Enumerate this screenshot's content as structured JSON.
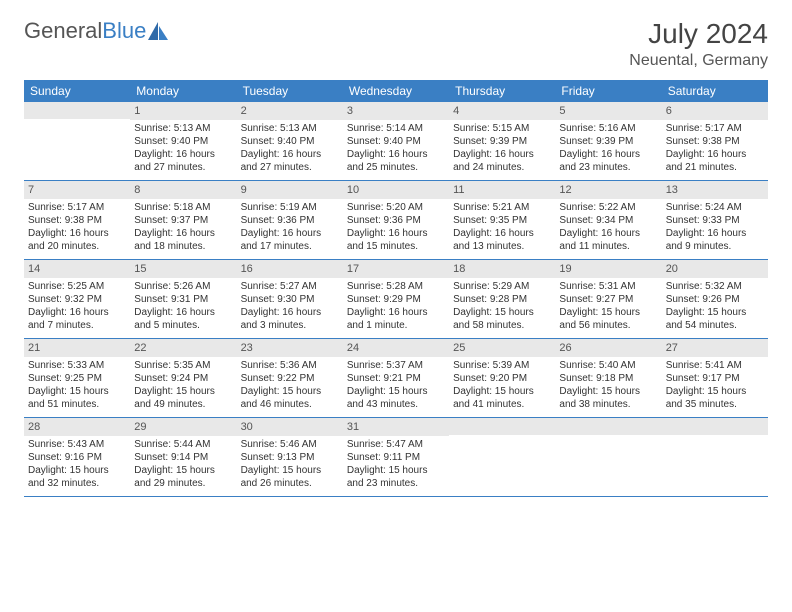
{
  "logo": {
    "word1": "General",
    "word2": "Blue"
  },
  "title": "July 2024",
  "location": "Neuental, Germany",
  "colors": {
    "header_bg": "#3a7fc4",
    "header_text": "#ffffff",
    "daynum_bg": "#e8e8e8",
    "row_border": "#3a7fc4",
    "body_text": "#333333"
  },
  "weekdays": [
    "Sunday",
    "Monday",
    "Tuesday",
    "Wednesday",
    "Thursday",
    "Friday",
    "Saturday"
  ],
  "weeks": [
    [
      {
        "day": "",
        "sunrise": "",
        "sunset": "",
        "daylight": ""
      },
      {
        "day": "1",
        "sunrise": "Sunrise: 5:13 AM",
        "sunset": "Sunset: 9:40 PM",
        "daylight": "Daylight: 16 hours and 27 minutes."
      },
      {
        "day": "2",
        "sunrise": "Sunrise: 5:13 AM",
        "sunset": "Sunset: 9:40 PM",
        "daylight": "Daylight: 16 hours and 27 minutes."
      },
      {
        "day": "3",
        "sunrise": "Sunrise: 5:14 AM",
        "sunset": "Sunset: 9:40 PM",
        "daylight": "Daylight: 16 hours and 25 minutes."
      },
      {
        "day": "4",
        "sunrise": "Sunrise: 5:15 AM",
        "sunset": "Sunset: 9:39 PM",
        "daylight": "Daylight: 16 hours and 24 minutes."
      },
      {
        "day": "5",
        "sunrise": "Sunrise: 5:16 AM",
        "sunset": "Sunset: 9:39 PM",
        "daylight": "Daylight: 16 hours and 23 minutes."
      },
      {
        "day": "6",
        "sunrise": "Sunrise: 5:17 AM",
        "sunset": "Sunset: 9:38 PM",
        "daylight": "Daylight: 16 hours and 21 minutes."
      }
    ],
    [
      {
        "day": "7",
        "sunrise": "Sunrise: 5:17 AM",
        "sunset": "Sunset: 9:38 PM",
        "daylight": "Daylight: 16 hours and 20 minutes."
      },
      {
        "day": "8",
        "sunrise": "Sunrise: 5:18 AM",
        "sunset": "Sunset: 9:37 PM",
        "daylight": "Daylight: 16 hours and 18 minutes."
      },
      {
        "day": "9",
        "sunrise": "Sunrise: 5:19 AM",
        "sunset": "Sunset: 9:36 PM",
        "daylight": "Daylight: 16 hours and 17 minutes."
      },
      {
        "day": "10",
        "sunrise": "Sunrise: 5:20 AM",
        "sunset": "Sunset: 9:36 PM",
        "daylight": "Daylight: 16 hours and 15 minutes."
      },
      {
        "day": "11",
        "sunrise": "Sunrise: 5:21 AM",
        "sunset": "Sunset: 9:35 PM",
        "daylight": "Daylight: 16 hours and 13 minutes."
      },
      {
        "day": "12",
        "sunrise": "Sunrise: 5:22 AM",
        "sunset": "Sunset: 9:34 PM",
        "daylight": "Daylight: 16 hours and 11 minutes."
      },
      {
        "day": "13",
        "sunrise": "Sunrise: 5:24 AM",
        "sunset": "Sunset: 9:33 PM",
        "daylight": "Daylight: 16 hours and 9 minutes."
      }
    ],
    [
      {
        "day": "14",
        "sunrise": "Sunrise: 5:25 AM",
        "sunset": "Sunset: 9:32 PM",
        "daylight": "Daylight: 16 hours and 7 minutes."
      },
      {
        "day": "15",
        "sunrise": "Sunrise: 5:26 AM",
        "sunset": "Sunset: 9:31 PM",
        "daylight": "Daylight: 16 hours and 5 minutes."
      },
      {
        "day": "16",
        "sunrise": "Sunrise: 5:27 AM",
        "sunset": "Sunset: 9:30 PM",
        "daylight": "Daylight: 16 hours and 3 minutes."
      },
      {
        "day": "17",
        "sunrise": "Sunrise: 5:28 AM",
        "sunset": "Sunset: 9:29 PM",
        "daylight": "Daylight: 16 hours and 1 minute."
      },
      {
        "day": "18",
        "sunrise": "Sunrise: 5:29 AM",
        "sunset": "Sunset: 9:28 PM",
        "daylight": "Daylight: 15 hours and 58 minutes."
      },
      {
        "day": "19",
        "sunrise": "Sunrise: 5:31 AM",
        "sunset": "Sunset: 9:27 PM",
        "daylight": "Daylight: 15 hours and 56 minutes."
      },
      {
        "day": "20",
        "sunrise": "Sunrise: 5:32 AM",
        "sunset": "Sunset: 9:26 PM",
        "daylight": "Daylight: 15 hours and 54 minutes."
      }
    ],
    [
      {
        "day": "21",
        "sunrise": "Sunrise: 5:33 AM",
        "sunset": "Sunset: 9:25 PM",
        "daylight": "Daylight: 15 hours and 51 minutes."
      },
      {
        "day": "22",
        "sunrise": "Sunrise: 5:35 AM",
        "sunset": "Sunset: 9:24 PM",
        "daylight": "Daylight: 15 hours and 49 minutes."
      },
      {
        "day": "23",
        "sunrise": "Sunrise: 5:36 AM",
        "sunset": "Sunset: 9:22 PM",
        "daylight": "Daylight: 15 hours and 46 minutes."
      },
      {
        "day": "24",
        "sunrise": "Sunrise: 5:37 AM",
        "sunset": "Sunset: 9:21 PM",
        "daylight": "Daylight: 15 hours and 43 minutes."
      },
      {
        "day": "25",
        "sunrise": "Sunrise: 5:39 AM",
        "sunset": "Sunset: 9:20 PM",
        "daylight": "Daylight: 15 hours and 41 minutes."
      },
      {
        "day": "26",
        "sunrise": "Sunrise: 5:40 AM",
        "sunset": "Sunset: 9:18 PM",
        "daylight": "Daylight: 15 hours and 38 minutes."
      },
      {
        "day": "27",
        "sunrise": "Sunrise: 5:41 AM",
        "sunset": "Sunset: 9:17 PM",
        "daylight": "Daylight: 15 hours and 35 minutes."
      }
    ],
    [
      {
        "day": "28",
        "sunrise": "Sunrise: 5:43 AM",
        "sunset": "Sunset: 9:16 PM",
        "daylight": "Daylight: 15 hours and 32 minutes."
      },
      {
        "day": "29",
        "sunrise": "Sunrise: 5:44 AM",
        "sunset": "Sunset: 9:14 PM",
        "daylight": "Daylight: 15 hours and 29 minutes."
      },
      {
        "day": "30",
        "sunrise": "Sunrise: 5:46 AM",
        "sunset": "Sunset: 9:13 PM",
        "daylight": "Daylight: 15 hours and 26 minutes."
      },
      {
        "day": "31",
        "sunrise": "Sunrise: 5:47 AM",
        "sunset": "Sunset: 9:11 PM",
        "daylight": "Daylight: 15 hours and 23 minutes."
      },
      {
        "day": "",
        "sunrise": "",
        "sunset": "",
        "daylight": ""
      },
      {
        "day": "",
        "sunrise": "",
        "sunset": "",
        "daylight": ""
      },
      {
        "day": "",
        "sunrise": "",
        "sunset": "",
        "daylight": ""
      }
    ]
  ]
}
